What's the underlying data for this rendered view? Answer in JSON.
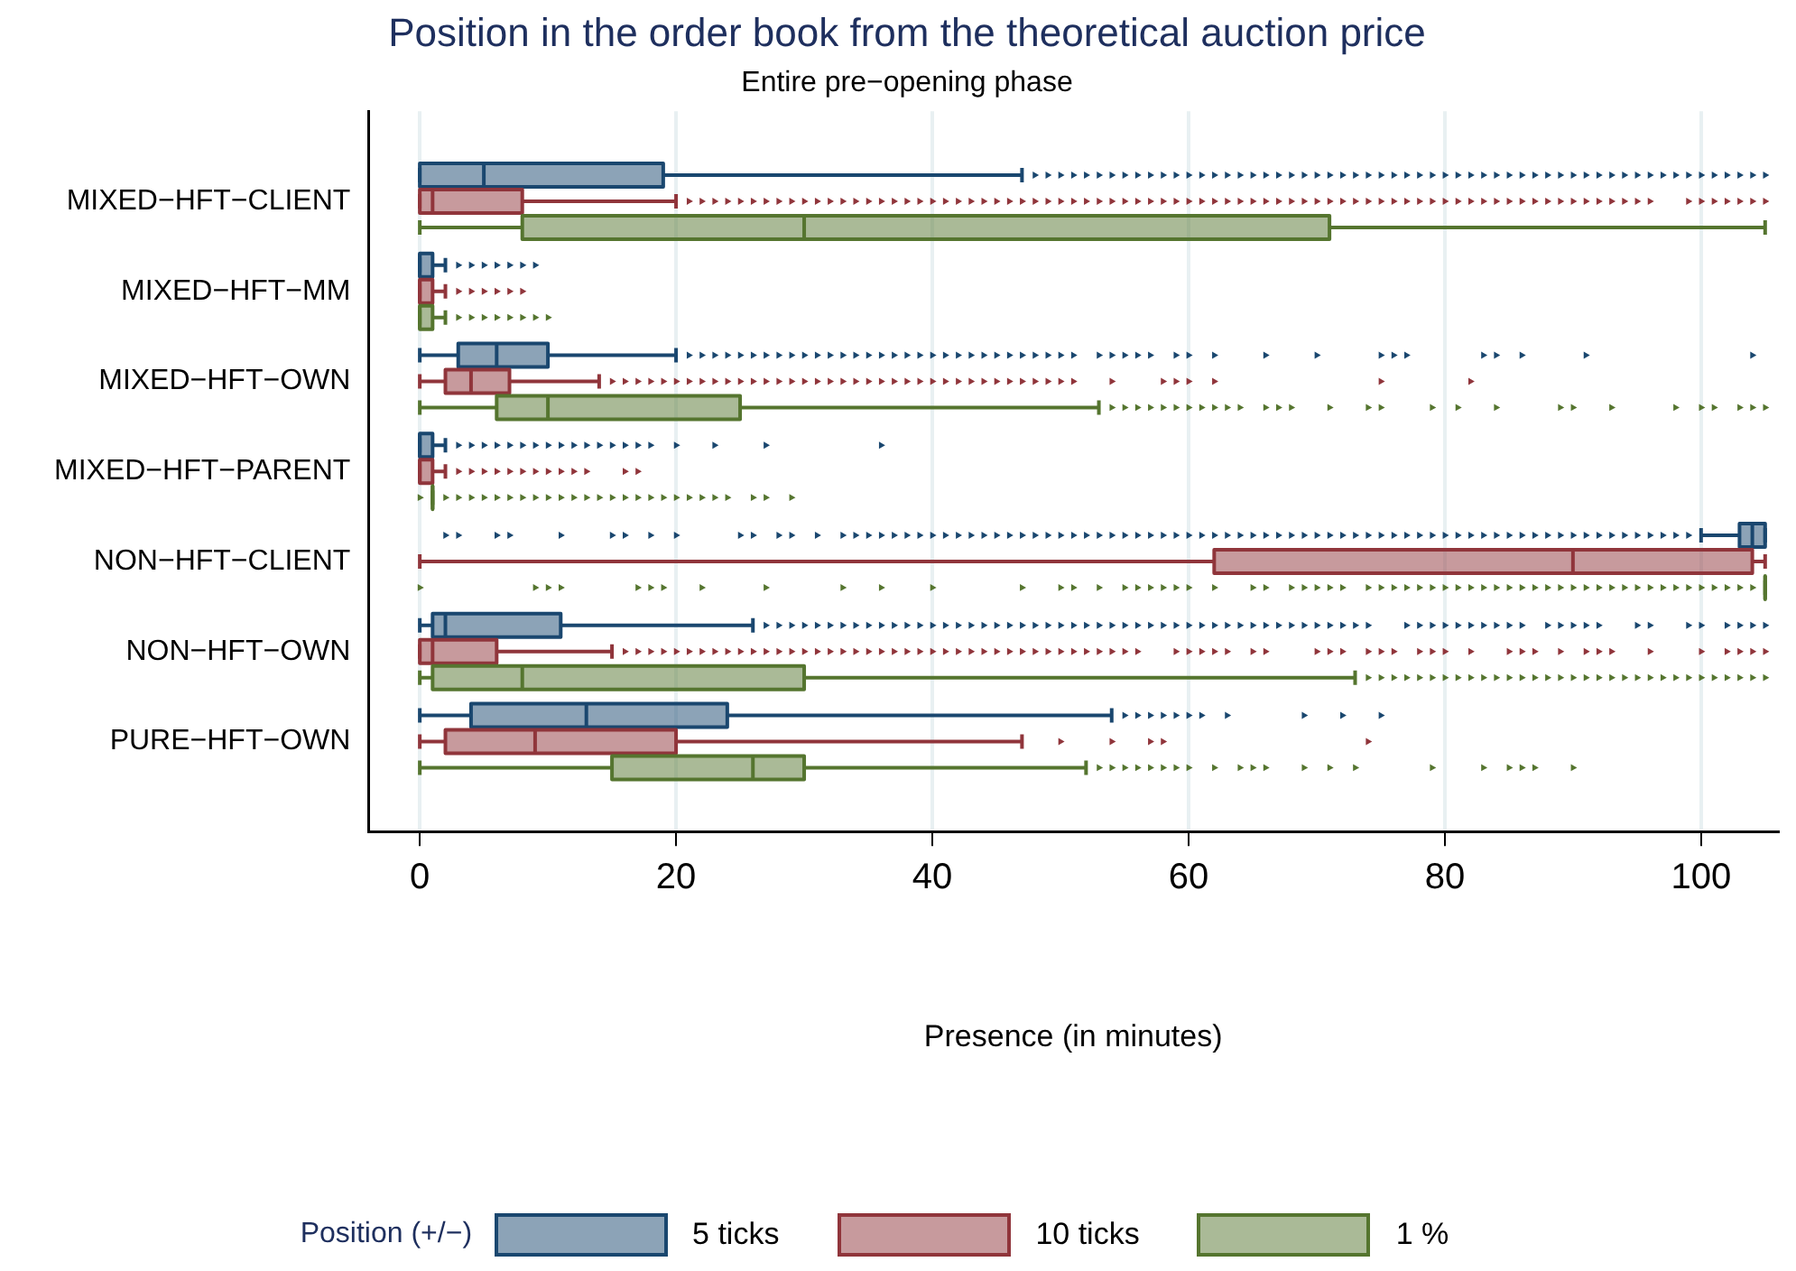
{
  "chart_data": {
    "type": "box",
    "orientation": "horizontal",
    "title": "Position in the order book from the theoretical auction price",
    "subtitle": "Entire pre−opening phase",
    "xlabel": "Presence (in minutes)",
    "legend_title": "Position  (+/−)",
    "legend": "bottom",
    "grid": "x",
    "marker": "triangle",
    "xlim": [
      -4,
      106
    ],
    "xticks": [
      0,
      20,
      40,
      60,
      80,
      100
    ],
    "categories": [
      "MIXED−HFT−CLIENT",
      "MIXED−HFT−MM",
      "MIXED−HFT−OWN",
      "MIXED−HFT−PARENT",
      "NON−HFT−CLIENT",
      "NON−HFT−OWN",
      "PURE−HFT−OWN"
    ],
    "series": [
      {
        "name": "5 ticks",
        "color": "#1a476f",
        "boxes": [
          {
            "low": 0,
            "q1": 0,
            "median": 5,
            "q3": 19,
            "high": 47,
            "outliers": [
              48,
              49,
              50,
              51,
              52,
              53,
              54,
              55,
              56,
              57,
              58,
              59,
              60,
              61,
              62,
              63,
              64,
              65,
              66,
              67,
              68,
              69,
              70,
              71,
              72,
              73,
              74,
              75,
              76,
              77,
              78,
              79,
              80,
              81,
              82,
              83,
              84,
              85,
              86,
              87,
              88,
              89,
              90,
              91,
              92,
              93,
              94,
              95,
              96,
              97,
              98,
              99,
              100,
              101,
              102,
              103,
              104,
              105
            ]
          },
          {
            "low": 0,
            "q1": 0,
            "median": 0,
            "q3": 1,
            "high": 2,
            "outliers": [
              3,
              4,
              5,
              6,
              7,
              8,
              9
            ]
          },
          {
            "low": 0,
            "q1": 3,
            "median": 6,
            "q3": 10,
            "high": 20,
            "outliers": [
              21,
              22,
              23,
              24,
              25,
              26,
              27,
              28,
              29,
              30,
              31,
              32,
              33,
              34,
              35,
              36,
              37,
              38,
              39,
              40,
              41,
              42,
              43,
              44,
              45,
              46,
              47,
              48,
              49,
              50,
              51,
              53,
              54,
              55,
              56,
              57,
              59,
              60,
              62,
              66,
              70,
              75,
              76,
              77,
              83,
              84,
              86,
              91,
              104
            ]
          },
          {
            "low": 0,
            "q1": 0,
            "median": 0,
            "q3": 1,
            "high": 2,
            "outliers": [
              3,
              4,
              5,
              6,
              7,
              8,
              9,
              10,
              11,
              12,
              13,
              14,
              15,
              16,
              17,
              18,
              20,
              23,
              27,
              36
            ]
          },
          {
            "low": 100,
            "q1": 103,
            "median": 104,
            "q3": 105,
            "high": 105,
            "outliers": [
              2,
              3,
              6,
              7,
              11,
              15,
              16,
              18,
              20,
              25,
              26,
              28,
              29,
              31,
              33,
              34,
              35,
              36,
              37,
              38,
              39,
              40,
              41,
              42,
              43,
              44,
              45,
              46,
              47,
              48,
              49,
              50,
              51,
              52,
              53,
              54,
              55,
              56,
              57,
              58,
              59,
              60,
              61,
              62,
              63,
              64,
              65,
              66,
              67,
              68,
              69,
              70,
              71,
              72,
              73,
              74,
              75,
              76,
              77,
              78,
              79,
              80,
              81,
              82,
              83,
              84,
              85,
              86,
              87,
              88,
              89,
              90,
              91,
              92,
              93,
              94,
              95,
              96,
              97,
              98,
              99
            ]
          },
          {
            "low": 0,
            "q1": 1,
            "median": 2,
            "q3": 11,
            "high": 26,
            "outliers": [
              27,
              28,
              29,
              30,
              31,
              32,
              33,
              34,
              35,
              36,
              37,
              38,
              39,
              40,
              41,
              42,
              43,
              44,
              45,
              46,
              47,
              48,
              49,
              50,
              51,
              52,
              53,
              54,
              55,
              56,
              57,
              58,
              59,
              60,
              61,
              62,
              63,
              64,
              65,
              66,
              67,
              68,
              69,
              70,
              71,
              72,
              73,
              74,
              77,
              78,
              79,
              80,
              81,
              82,
              83,
              84,
              85,
              86,
              88,
              89,
              90,
              91,
              92,
              95,
              96,
              99,
              100,
              102,
              103,
              104,
              105
            ]
          },
          {
            "low": 0,
            "q1": 4,
            "median": 13,
            "q3": 24,
            "high": 54,
            "outliers": [
              55,
              56,
              57,
              58,
              59,
              60,
              61,
              63,
              69,
              72,
              75
            ]
          }
        ]
      },
      {
        "name": "10 ticks",
        "color": "#90353b",
        "boxes": [
          {
            "low": 0,
            "q1": 0,
            "median": 1,
            "q3": 8,
            "high": 20,
            "outliers": [
              21,
              22,
              23,
              24,
              25,
              26,
              27,
              28,
              29,
              30,
              31,
              32,
              33,
              34,
              35,
              36,
              37,
              38,
              39,
              40,
              41,
              42,
              43,
              44,
              45,
              46,
              47,
              48,
              49,
              50,
              51,
              52,
              53,
              54,
              55,
              56,
              57,
              58,
              59,
              60,
              61,
              62,
              63,
              64,
              65,
              66,
              67,
              68,
              69,
              70,
              71,
              72,
              73,
              74,
              75,
              76,
              77,
              78,
              79,
              80,
              81,
              82,
              83,
              84,
              85,
              86,
              87,
              88,
              89,
              90,
              91,
              92,
              93,
              94,
              95,
              96,
              99,
              100,
              101,
              102,
              103,
              104,
              105
            ]
          },
          {
            "low": 0,
            "q1": 0,
            "median": 0,
            "q3": 1,
            "high": 2,
            "outliers": [
              3,
              4,
              5,
              6,
              7,
              8
            ]
          },
          {
            "low": 0,
            "q1": 2,
            "median": 4,
            "q3": 7,
            "high": 14,
            "outliers": [
              15,
              16,
              17,
              18,
              19,
              20,
              21,
              22,
              23,
              24,
              25,
              26,
              27,
              28,
              29,
              30,
              31,
              32,
              33,
              34,
              35,
              36,
              37,
              38,
              39,
              40,
              41,
              42,
              43,
              44,
              45,
              46,
              47,
              48,
              49,
              50,
              51,
              54,
              58,
              59,
              60,
              62,
              75,
              82
            ]
          },
          {
            "low": 0,
            "q1": 0,
            "median": 0,
            "q3": 1,
            "high": 2,
            "outliers": [
              3,
              4,
              5,
              6,
              7,
              8,
              9,
              10,
              11,
              12,
              13,
              16,
              17
            ]
          },
          {
            "low": 0,
            "q1": 62,
            "median": 90,
            "q3": 104,
            "high": 105
          },
          {
            "low": 0,
            "q1": 0,
            "median": 1,
            "q3": 6,
            "high": 15,
            "outliers": [
              16,
              17,
              18,
              19,
              20,
              21,
              22,
              23,
              24,
              25,
              26,
              27,
              28,
              29,
              30,
              31,
              32,
              33,
              34,
              35,
              36,
              37,
              38,
              39,
              40,
              41,
              42,
              43,
              44,
              45,
              46,
              47,
              48,
              49,
              50,
              51,
              52,
              53,
              54,
              55,
              56,
              59,
              60,
              61,
              62,
              63,
              65,
              66,
              70,
              71,
              72,
              74,
              75,
              76,
              78,
              79,
              80,
              82,
              85,
              86,
              87,
              89,
              91,
              92,
              93,
              96,
              100,
              102,
              103,
              104,
              105
            ]
          },
          {
            "low": 0,
            "q1": 2,
            "median": 9,
            "q3": 20,
            "high": 47,
            "outliers": [
              50,
              54,
              57,
              58,
              74
            ]
          }
        ]
      },
      {
        "name": "1 %",
        "color": "#55752f",
        "boxes": [
          {
            "low": 0,
            "q1": 8,
            "median": 30,
            "q3": 71,
            "high": 105
          },
          {
            "low": 0,
            "q1": 0,
            "median": 0,
            "q3": 1,
            "high": 2,
            "outliers": [
              3,
              4,
              5,
              6,
              7,
              8,
              9,
              10
            ]
          },
          {
            "low": 0,
            "q1": 6,
            "median": 10,
            "q3": 25,
            "high": 53,
            "outliers": [
              54,
              55,
              56,
              57,
              58,
              59,
              60,
              61,
              62,
              63,
              64,
              66,
              67,
              68,
              71,
              74,
              75,
              79,
              81,
              84,
              89,
              90,
              93,
              98,
              100,
              101,
              103,
              104,
              105
            ]
          },
          {
            "low": 1,
            "q1": 1,
            "median": 1,
            "q3": 1,
            "high": 1,
            "outliers": [
              0,
              2,
              3,
              4,
              5,
              6,
              7,
              8,
              9,
              10,
              11,
              12,
              13,
              14,
              15,
              16,
              17,
              18,
              19,
              20,
              21,
              22,
              23,
              24,
              26,
              27,
              29
            ]
          },
          {
            "low": 105,
            "q1": 105,
            "median": 105,
            "q3": 105,
            "high": 105,
            "outliers": [
              0,
              9,
              10,
              11,
              17,
              18,
              19,
              22,
              27,
              33,
              36,
              40,
              47,
              50,
              51,
              53,
              55,
              56,
              57,
              58,
              59,
              60,
              62,
              65,
              66,
              68,
              69,
              70,
              71,
              72,
              74,
              75,
              76,
              77,
              78,
              79,
              80,
              81,
              82,
              83,
              84,
              85,
              86,
              87,
              88,
              89,
              90,
              91,
              92,
              93,
              94,
              95,
              96,
              97,
              98,
              99,
              100,
              101,
              102,
              103,
              104
            ]
          },
          {
            "low": 0,
            "q1": 1,
            "median": 8,
            "q3": 30,
            "high": 73,
            "outliers": [
              74,
              75,
              76,
              77,
              78,
              79,
              80,
              81,
              82,
              83,
              84,
              85,
              86,
              87,
              88,
              89,
              90,
              91,
              92,
              93,
              94,
              95,
              96,
              97,
              98,
              99,
              100,
              101,
              102,
              103,
              104,
              105
            ]
          },
          {
            "low": 0,
            "q1": 15,
            "median": 26,
            "q3": 30,
            "high": 52,
            "outliers": [
              53,
              54,
              55,
              56,
              57,
              58,
              59,
              60,
              62,
              64,
              65,
              66,
              69,
              71,
              73,
              79,
              83,
              85,
              86,
              87,
              90
            ]
          }
        ]
      }
    ]
  }
}
